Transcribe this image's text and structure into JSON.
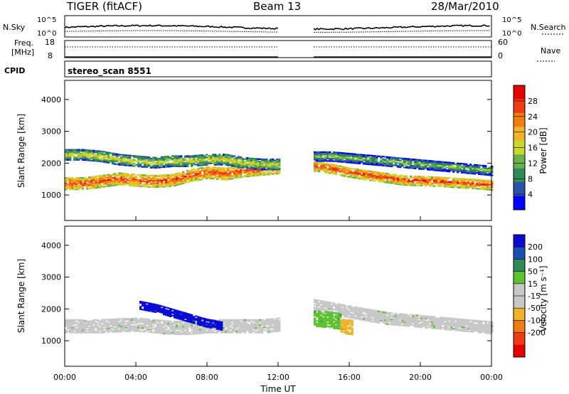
{
  "header": {
    "title": "TIGER (fitACF)",
    "beam": "Beam 13",
    "date": "28/Mar/2010"
  },
  "status_panels": {
    "nsky_label": "N.Sky",
    "nsearch_label": "N.Search",
    "nsky_ticks": [
      "10^5",
      "10^0"
    ],
    "freq_label_line1": "Freq.",
    "freq_label_line2": "[MHz]",
    "freq_ticks": [
      "18",
      "8"
    ],
    "nave_label": "Nave",
    "nave_ticks": [
      "60",
      "0"
    ],
    "cpid_label": "CPID",
    "cpid_value": "stereo_scan 8551"
  },
  "x_axis": {
    "label": "Time UT",
    "ticks": [
      "00:00",
      "04:00",
      "08:00",
      "12:00",
      "16:00",
      "20:00",
      "00:00"
    ],
    "range_hours": [
      0,
      24
    ],
    "data_gap_hours": [
      12.0,
      14.0
    ]
  },
  "chart_data": [
    {
      "type": "heatmap",
      "name": "power",
      "ylabel": "Slant Range [km]",
      "yticks": [
        "1000",
        "2000",
        "3000",
        "4000"
      ],
      "ylim": [
        200,
        4600
      ],
      "colorbar": {
        "label": "Power [dB]",
        "ticks": [
          "4",
          "8",
          "12",
          "16",
          "20",
          "24",
          "28"
        ],
        "range": [
          0,
          32
        ],
        "colors": [
          "#0000ff",
          "#2a52a8",
          "#2e8b57",
          "#6ab04c",
          "#c8d831",
          "#f0b429",
          "#f07d12",
          "#ef3b12",
          "#e60000"
        ]
      },
      "bands": [
        {
          "t": [
            0.0,
            12.0
          ],
          "center_km": [
            1350,
            1350,
            1420,
            1500,
            1450,
            1420,
            1450,
            1600,
            1700,
            1650,
            1750,
            1800,
            1850
          ],
          "width_km": 380,
          "value_db": 28
        },
        {
          "t": [
            0.0,
            12.0
          ],
          "center_km": [
            2250,
            2250,
            2200,
            2100,
            2050,
            2000,
            2050,
            2050,
            2100,
            2100,
            2000,
            1950,
            1950
          ],
          "width_km": 330,
          "value_db": 18
        },
        {
          "t": [
            14.0,
            24.0
          ],
          "center_km": [
            1900,
            1820,
            1700,
            1620,
            1540,
            1460,
            1440,
            1420,
            1380,
            1350,
            1300
          ],
          "width_km": 320,
          "value_db": 28
        },
        {
          "t": [
            14.0,
            24.0
          ],
          "center_km": [
            2200,
            2200,
            2150,
            2100,
            2050,
            2000,
            1950,
            1900,
            1850,
            1800,
            1750
          ],
          "width_km": 300,
          "value_db": 14
        }
      ]
    },
    {
      "type": "heatmap",
      "name": "velocity",
      "ylabel": "Slant Range [km]",
      "yticks": [
        "1000",
        "2000",
        "3000",
        "4000"
      ],
      "ylim": [
        200,
        4600
      ],
      "colorbar": {
        "label": "Velocity [m s^-1]",
        "ticks": [
          "200",
          "100",
          "50",
          "15",
          "-15",
          "-50",
          "-100",
          "-200"
        ],
        "colors": [
          "#0a0ad6",
          "#1a50b0",
          "#2e8b57",
          "#5cc22e",
          "#c8c8c8",
          "#c8c8c8",
          "#f0b429",
          "#f07d12",
          "#ef3b12",
          "#e60000"
        ]
      },
      "bands": [
        {
          "t": [
            0.0,
            12.0
          ],
          "center_km": [
            1450,
            1450,
            1450,
            1480,
            1500,
            1450,
            1400,
            1400,
            1450,
            1450,
            1450,
            1450,
            1500
          ],
          "width_km": 420,
          "value_ms": 0
        },
        {
          "t": [
            4.2,
            8.8
          ],
          "center_km": [
            2100,
            2000,
            1850,
            1700,
            1550,
            1450
          ],
          "width_km": 250,
          "value_ms": 200
        },
        {
          "t": [
            14.0,
            24.0
          ],
          "center_km": [
            2100,
            2000,
            1900,
            1800,
            1700,
            1650,
            1600,
            1550,
            1500,
            1450,
            1400
          ],
          "width_km": 380,
          "value_ms": 0
        },
        {
          "t": [
            14.0,
            15.5
          ],
          "center_km": [
            1700,
            1600
          ],
          "width_km": 500,
          "value_ms": 60
        },
        {
          "t": [
            15.5,
            16.2
          ],
          "center_km": [
            1450,
            1400
          ],
          "width_km": 450,
          "value_ms": -70
        }
      ]
    }
  ]
}
